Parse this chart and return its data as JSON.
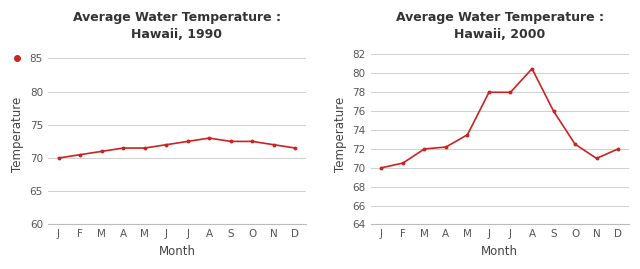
{
  "title1": "Average Water Temperature :\nHawaii, 1990",
  "title2": "Average Water Temperature :\nHawaii, 2000",
  "xlabel": "Month",
  "ylabel": "Temperature",
  "months": [
    "J",
    "F",
    "M",
    "A",
    "M",
    "J",
    "J",
    "A",
    "S",
    "O",
    "N",
    "D"
  ],
  "values1990": [
    70,
    70.5,
    71,
    71.5,
    71.5,
    72,
    72.5,
    73,
    72.5,
    72.5,
    72,
    71.5
  ],
  "values2000": [
    70,
    70.5,
    72,
    72.2,
    73.5,
    78,
    78,
    80.5,
    76,
    72.5,
    71,
    72
  ],
  "line_color": "#cc2222",
  "marker_color": "#cc2222",
  "ylim1": [
    60,
    87
  ],
  "ylim2": [
    64,
    83
  ],
  "yticks1": [
    60,
    65,
    70,
    75,
    80,
    85
  ],
  "yticks2": [
    64,
    66,
    68,
    70,
    72,
    74,
    76,
    78,
    80,
    82
  ],
  "grid_color": "#d0d0d0",
  "bg_color": "#ffffff",
  "title_fontsize": 9,
  "axis_label_fontsize": 8.5,
  "tick_fontsize": 7.5
}
